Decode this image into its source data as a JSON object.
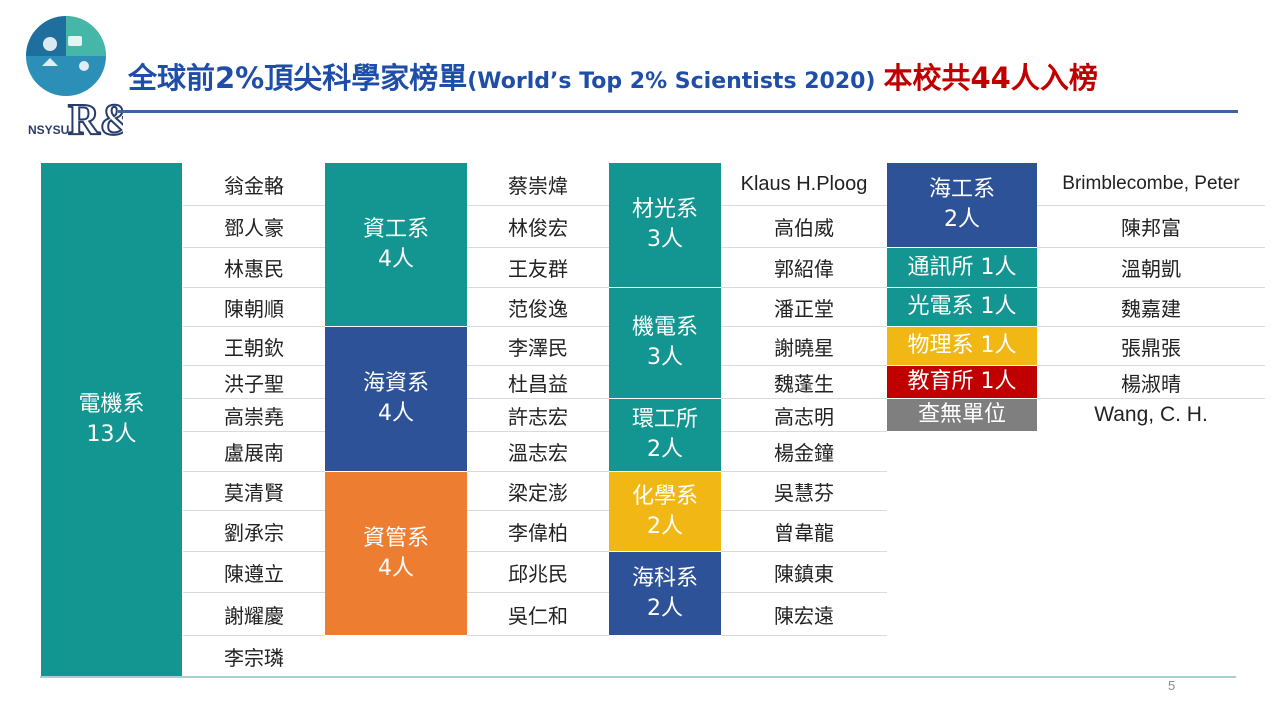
{
  "logo": {
    "text": "NSYSU",
    "mark": "R&D"
  },
  "title": {
    "part1": "全球前2%頂尖科學家榜單",
    "part2": "(World’s Top 2% Scientists 2020)",
    "part3": "本校共44人入榜"
  },
  "colors": {
    "teal": "#139691",
    "blue": "#2e5297",
    "orange": "#ed7d31",
    "yellow": "#f1b815",
    "red": "#c00000",
    "gray": "#7f7f7f",
    "title_blue": "#1f4ea8"
  },
  "departments": {
    "ee": "電機系\n13人",
    "cs": "資工系\n4人",
    "marine_res": "海資系\n4人",
    "mis": "資管系\n4人",
    "mat_opt": "材光系\n3人",
    "mech_elec": "機電系\n3人",
    "env": "環工所\n2人",
    "chem": "化學系\n2人",
    "marine_sci": "海科系\n2人",
    "marine_eng": "海工系\n2人",
    "comm": "通訊所 1人",
    "photonics": "光電系 1人",
    "physics": "物理系 1人",
    "education": "教育所 1人",
    "unknown": "查無單位"
  },
  "names": {
    "col1": [
      "翁金輅",
      "鄧人豪",
      "林惠民",
      "陳朝順",
      "王朝欽",
      "洪子聖",
      "高崇堯",
      "盧展南",
      "莫清賢",
      "劉承宗",
      "陳遵立",
      "謝耀慶",
      "李宗璘"
    ],
    "col2": [
      "蔡崇煒",
      "林俊宏",
      "王友群",
      "范俊逸",
      "李澤民",
      "杜昌益",
      "許志宏",
      "溫志宏",
      "梁定澎",
      "李偉柏",
      "邱兆民",
      "吳仁和"
    ],
    "col3": [
      "Klaus H.Ploog",
      "高伯威",
      "郭紹偉",
      "潘正堂",
      "謝曉星",
      "魏蓬生",
      "高志明",
      "楊金鐘",
      "吳慧芬",
      "曾韋龍",
      "陳鎮東",
      "陳宏遠"
    ],
    "col4": [
      "Brimblecombe, Peter",
      "陳邦富",
      "溫朝凱",
      "魏嘉建",
      "張鼎張",
      "楊淑晴",
      "Wang, C. H."
    ]
  },
  "page_number": "5"
}
